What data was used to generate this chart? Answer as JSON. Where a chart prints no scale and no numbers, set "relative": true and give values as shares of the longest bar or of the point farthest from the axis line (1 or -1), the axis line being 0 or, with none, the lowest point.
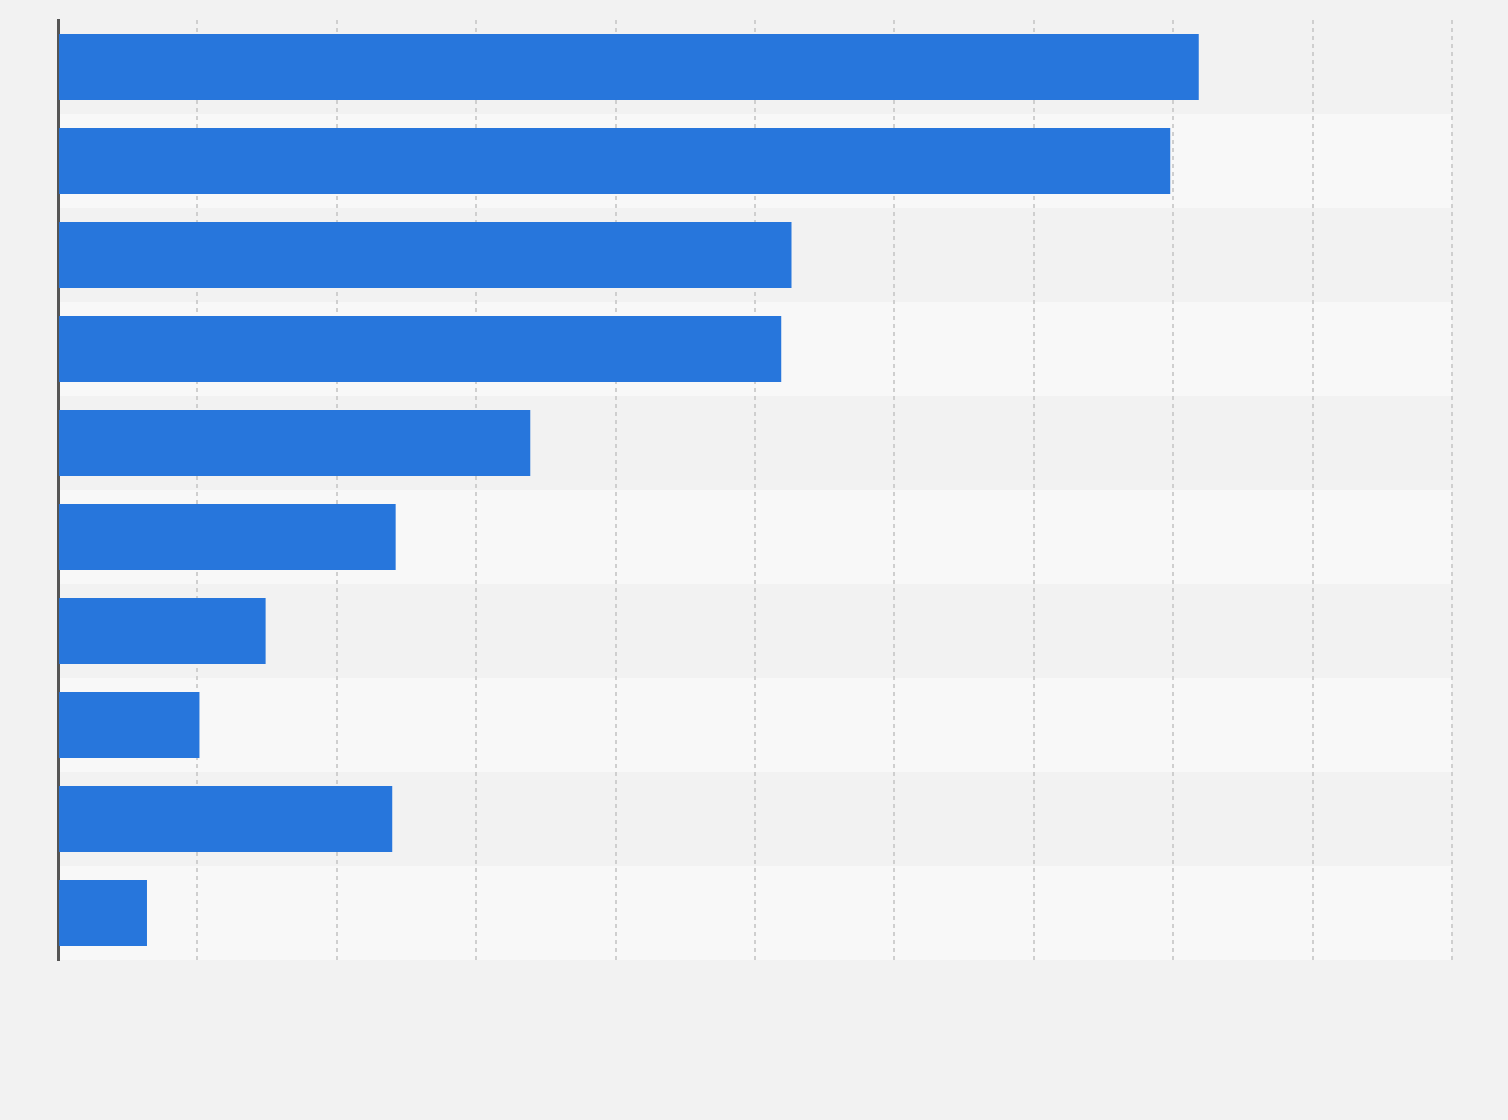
{
  "chart_data": {
    "type": "bar",
    "orientation": "horizontal",
    "relative": true,
    "categories": [
      null,
      null,
      null,
      null,
      null,
      null,
      null,
      null,
      null,
      null
    ],
    "values": [
      1,
      0.975,
      0.643,
      0.634,
      0.414,
      0.296,
      0.182,
      0.124,
      0.293,
      0.078
    ],
    "color": "#2776dc",
    "grid": "x"
  }
}
